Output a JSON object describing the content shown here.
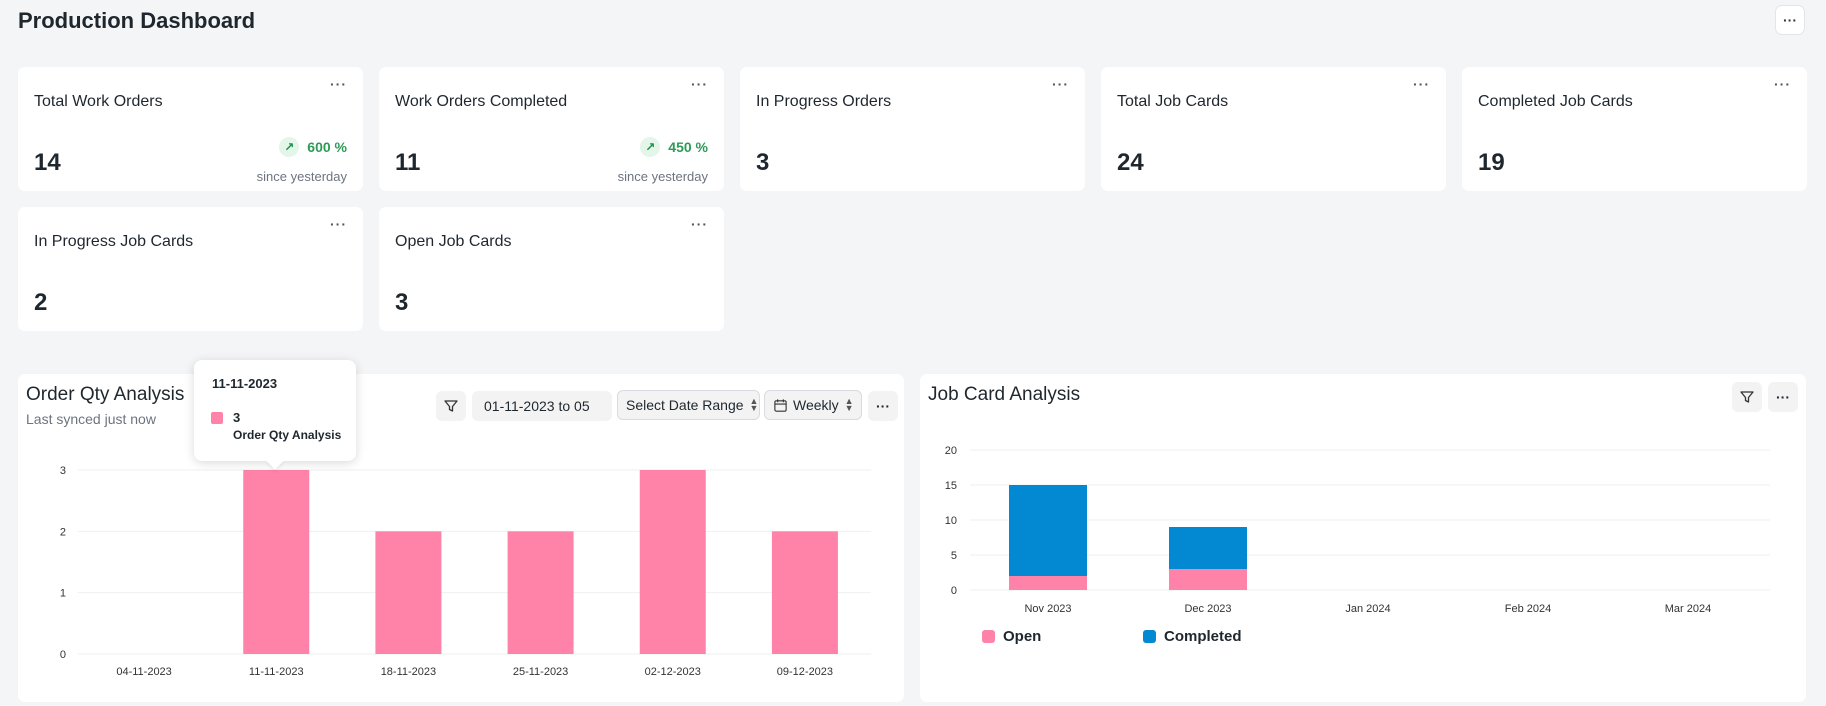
{
  "page": {
    "title": "Production Dashboard",
    "menu_label": "···"
  },
  "cards": [
    {
      "title": "Total Work Orders",
      "value": "14",
      "trend": "600 %",
      "trend_sub": "since yesterday",
      "menu": "···"
    },
    {
      "title": "Work Orders Completed",
      "value": "11",
      "trend": "450 %",
      "trend_sub": "since yesterday",
      "menu": "···"
    },
    {
      "title": "In Progress Orders",
      "value": "3",
      "menu": "···"
    },
    {
      "title": "Total Job Cards",
      "value": "24",
      "menu": "···"
    },
    {
      "title": "Completed Job Cards",
      "value": "19",
      "menu": "···"
    },
    {
      "title": "In Progress Job Cards",
      "value": "2",
      "menu": "···"
    },
    {
      "title": "Open Job Cards",
      "value": "3",
      "menu": "···"
    }
  ],
  "order_panel": {
    "title": "Order Qty Analysis",
    "subtitle": "Last synced just now",
    "date_range_value": "01-11-2023 to 05",
    "date_range_select": "Select Date Range",
    "interval": "Weekly",
    "menu": "···",
    "tooltip": {
      "date": "11-11-2023",
      "value": "3",
      "series": "Order Qty Analysis"
    }
  },
  "job_panel": {
    "title": "Job Card Analysis",
    "menu": "···",
    "legend": [
      {
        "name": "Open",
        "color": "#ff82a9"
      },
      {
        "name": "Completed",
        "color": "#0289d1"
      }
    ]
  },
  "chart_data": [
    {
      "type": "bar",
      "title": "Order Qty Analysis",
      "categories": [
        "04-11-2023",
        "11-11-2023",
        "18-11-2023",
        "25-11-2023",
        "02-12-2023",
        "09-12-2023"
      ],
      "series": [
        {
          "name": "Order Qty Analysis",
          "values": [
            0,
            3,
            2,
            2,
            3,
            2
          ],
          "color": "#ff82a9"
        }
      ],
      "yticks": [
        "0",
        "1",
        "2",
        "3"
      ],
      "ylim": [
        0,
        3
      ],
      "grid": true
    },
    {
      "type": "bar",
      "stacked": true,
      "title": "Job Card Analysis",
      "categories": [
        "Nov 2023",
        "Dec 2023",
        "Jan 2024",
        "Feb 2024",
        "Mar 2024"
      ],
      "series": [
        {
          "name": "Open",
          "values": [
            2,
            3,
            0,
            0,
            0
          ],
          "color": "#ff82a9"
        },
        {
          "name": "Completed",
          "values": [
            13,
            6,
            0,
            0,
            0
          ],
          "color": "#0289d1"
        }
      ],
      "yticks": [
        "0",
        "5",
        "10",
        "15",
        "20"
      ],
      "ylim": [
        0,
        20
      ],
      "grid": true,
      "legend": "bottom-left"
    }
  ]
}
